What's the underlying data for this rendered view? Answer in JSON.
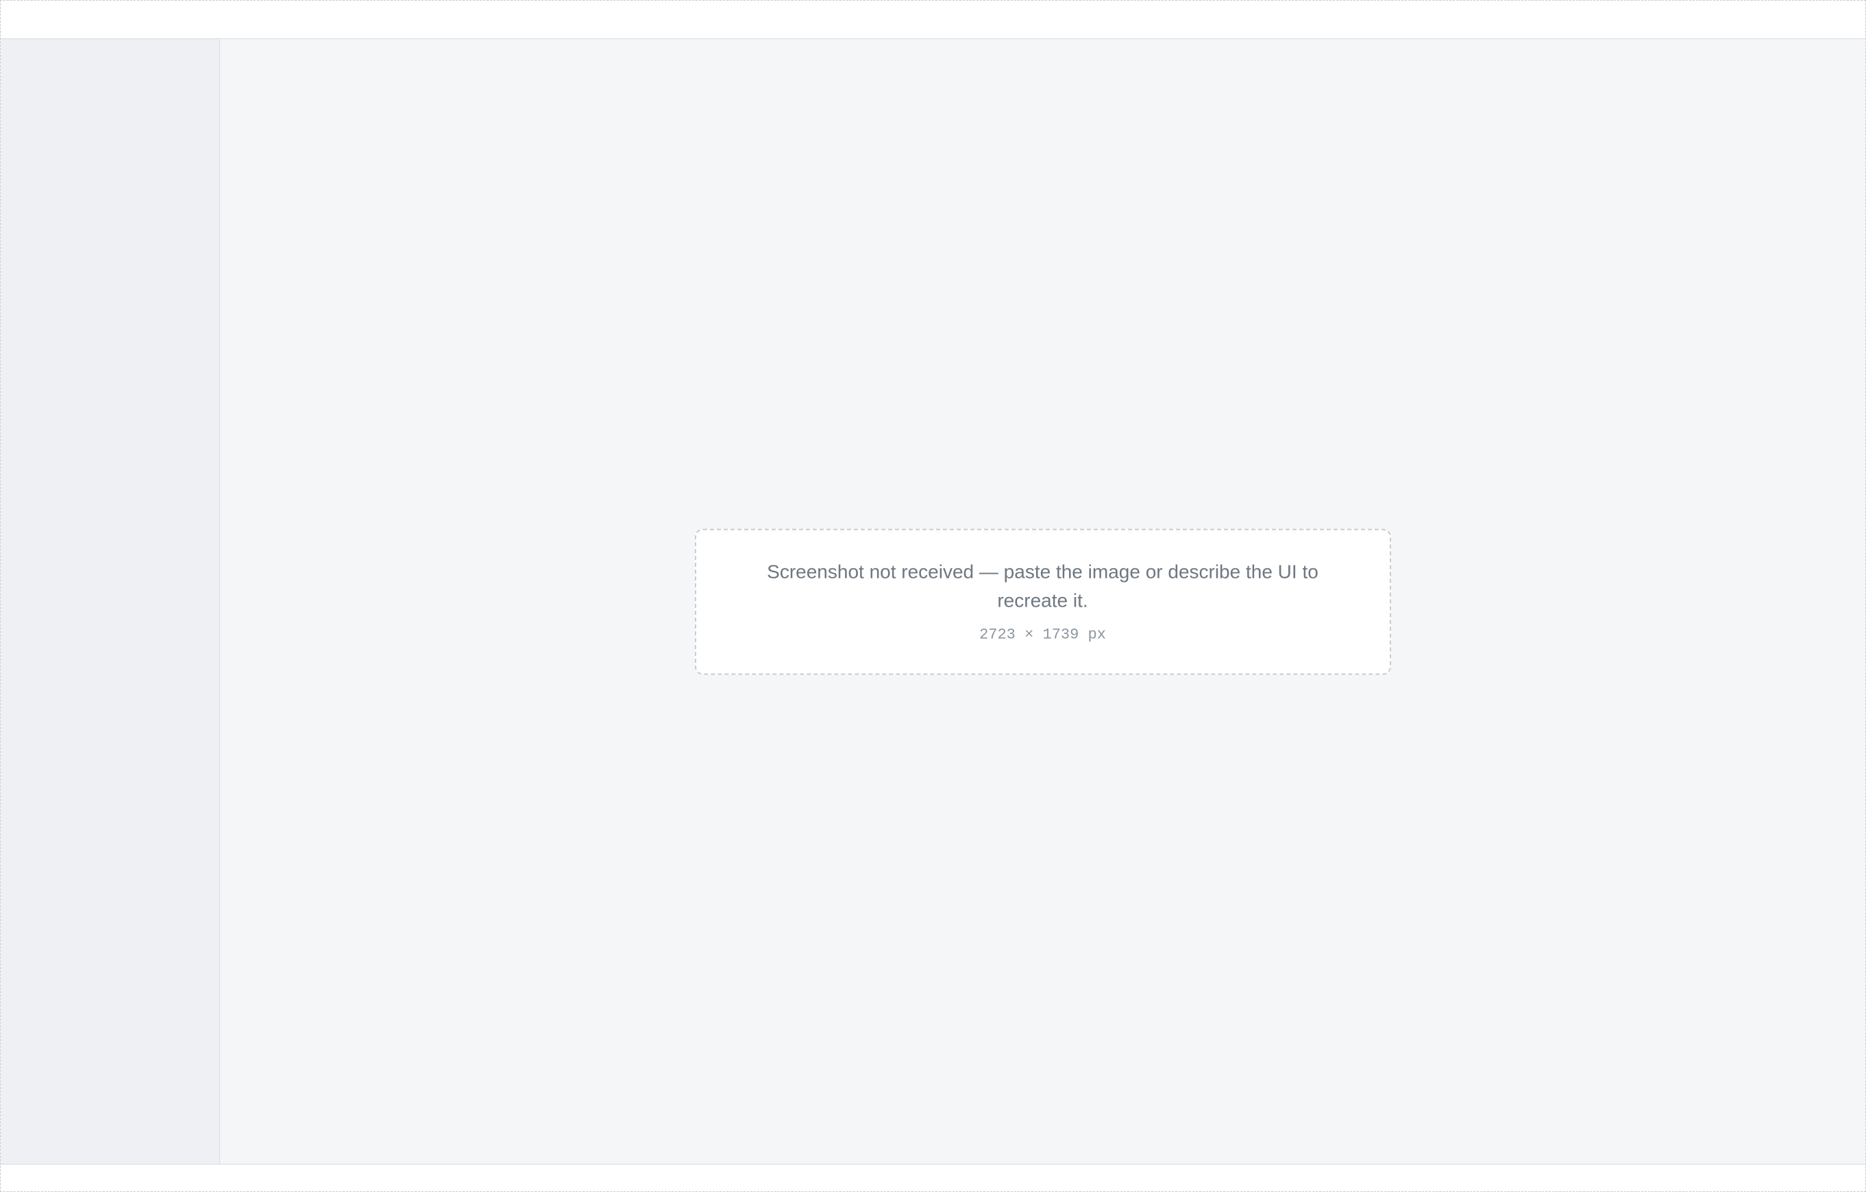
{
  "window": {
    "title": ""
  },
  "sidebar": {
    "items": []
  },
  "main": {
    "notice": "Screenshot not received — paste the image or describe the UI to recreate it.",
    "target_size": "2723 × 1739 px"
  },
  "status": {
    "text": ""
  }
}
